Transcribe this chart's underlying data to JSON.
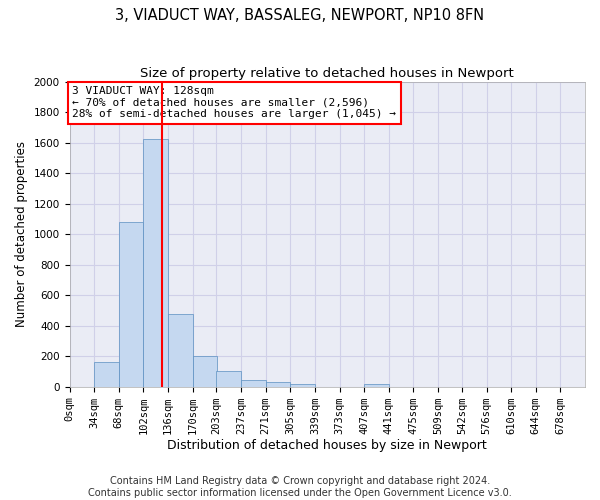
{
  "title_line1": "3, VIADUCT WAY, BASSALEG, NEWPORT, NP10 8FN",
  "title_line2": "Size of property relative to detached houses in Newport",
  "xlabel": "Distribution of detached houses by size in Newport",
  "ylabel": "Number of detached properties",
  "footer_line1": "Contains HM Land Registry data © Crown copyright and database right 2024.",
  "footer_line2": "Contains public sector information licensed under the Open Government Licence v3.0.",
  "annotation_title": "3 VIADUCT WAY: 128sqm",
  "annotation_line1": "← 70% of detached houses are smaller (2,596)",
  "annotation_line2": "28% of semi-detached houses are larger (1,045) →",
  "property_size": 128,
  "bar_color": "#c5d8f0",
  "bar_edge_color": "#5a8fc0",
  "vline_color": "red",
  "ylim": [
    0,
    2000
  ],
  "yticks": [
    0,
    200,
    400,
    600,
    800,
    1000,
    1200,
    1400,
    1600,
    1800,
    2000
  ],
  "categories": [
    "0sqm",
    "34sqm",
    "68sqm",
    "102sqm",
    "136sqm",
    "170sqm",
    "203sqm",
    "237sqm",
    "271sqm",
    "305sqm",
    "339sqm",
    "373sqm",
    "407sqm",
    "441sqm",
    "475sqm",
    "509sqm",
    "542sqm",
    "576sqm",
    "610sqm",
    "644sqm",
    "678sqm"
  ],
  "bin_starts": [
    0,
    34,
    68,
    102,
    136,
    170,
    203,
    237,
    271,
    305,
    339,
    373,
    407,
    441,
    475,
    509,
    542,
    576,
    610,
    644,
    678
  ],
  "bin_width": 34,
  "values": [
    0,
    160,
    1080,
    1625,
    475,
    200,
    100,
    45,
    30,
    20,
    0,
    0,
    20,
    0,
    0,
    0,
    0,
    0,
    0,
    0,
    0
  ],
  "grid_color": "#d0d0e8",
  "bg_color": "#eaecf5",
  "annotation_box_color": "white",
  "annotation_box_edge": "red",
  "title_fontsize": 10.5,
  "subtitle_fontsize": 9.5,
  "axis_label_fontsize": 8.5,
  "tick_fontsize": 7.5,
  "footer_fontsize": 7,
  "annotation_fontsize": 8
}
